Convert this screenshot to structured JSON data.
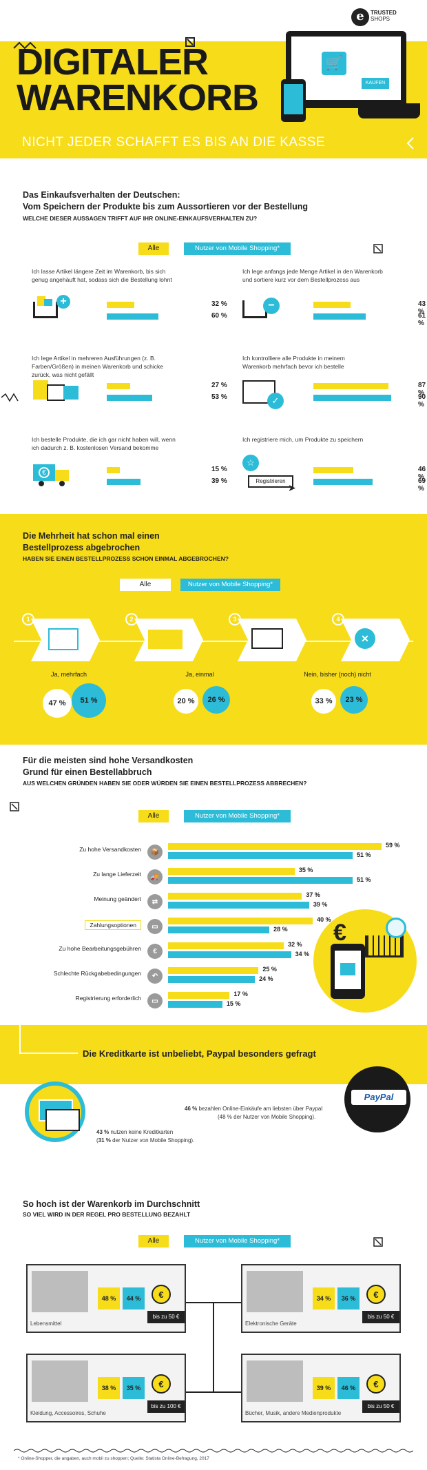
{
  "header": {
    "title_line1": "DIGITALER",
    "title_line2": "WARENKORB",
    "subtitle": "NICHT JEDER SCHAFFT ES BIS AN DIE KASSE",
    "logo_line1": "TRUSTED",
    "logo_line2": "SHOPS",
    "cart_label": "KAUFEN"
  },
  "legend": {
    "all": "Alle",
    "mobile": "Nutzer von Mobile Shopping*"
  },
  "section1": {
    "title_line1": "Das Einkaufsverhalten der Deutschen:",
    "title_line2": "Vom Speichern der Produkte bis zum Aussortieren vor der Bestellung",
    "question": "WELCHE DIESER AUSSAGEN TRIFFT AUF IHR ONLINE-EINKAUFSVERHALTEN ZU?",
    "register_label": "Registrieren",
    "items": [
      {
        "text": "Ich lasse Artikel längere Zeit im Warenkorb, bis sich genug angehäuft hat, sodass sich die Bestellung lohnt",
        "all": 32,
        "mobile": 60,
        "all_label": "32 %",
        "mobile_label": "60 %"
      },
      {
        "text": "Ich lege anfangs jede Menge Artikel in den Warenkorb und sortiere kurz vor dem Bestellprozess aus",
        "all": 43,
        "mobile": 61,
        "all_label": "43 %",
        "mobile_label": "61 %"
      },
      {
        "text": "Ich lege Artikel in mehreren Ausführungen (z. B. Farben/Größen) in meinen Warenkorb und schicke zurück, was nicht gefällt",
        "all": 27,
        "mobile": 53,
        "all_label": "27 %",
        "mobile_label": "53 %"
      },
      {
        "text": "Ich kontrolliere alle Produkte in meinem Warenkorb mehrfach bevor ich bestelle",
        "all": 87,
        "mobile": 90,
        "all_label": "87 %",
        "mobile_label": "90 %"
      },
      {
        "text": "Ich bestelle Produkte, die ich gar nicht haben will, wenn ich dadurch z. B. kostenlosen Versand bekomme",
        "all": 15,
        "mobile": 39,
        "all_label": "15 %",
        "mobile_label": "39 %"
      },
      {
        "text": "Ich registriere mich, um Produkte zu speichern",
        "all": 46,
        "mobile": 69,
        "all_label": "46 %",
        "mobile_label": "69 %"
      }
    ]
  },
  "section2": {
    "title_line1": "Die Mehrheit hat schon mal einen",
    "title_line2": "Bestellprozess abgebrochen",
    "question": "HABEN SIE EINEN BESTELLPROZESS SCHON EINMAL ABGEBROCHEN?",
    "steps": [
      "1",
      "2",
      "3",
      "4"
    ],
    "answers": [
      {
        "label": "Ja, mehrfach",
        "all_label": "47 %",
        "mobile_label": "51 %"
      },
      {
        "label": "Ja, einmal",
        "all_label": "20 %",
        "mobile_label": "26 %"
      },
      {
        "label": "Nein, bisher (noch) nicht",
        "all_label": "33 %",
        "mobile_label": "23 %"
      }
    ]
  },
  "section3": {
    "title_line1": "Für die meisten sind hohe Versandkosten",
    "title_line2": "Grund für einen Bestellabbruch",
    "question": "AUS WELCHEN GRÜNDEN HABEN SIE ODER WÜRDEN SIE EINEN BESTELLPROZESS ABBRECHEN?",
    "euro": "€"
  },
  "chart_data": {
    "type": "bar",
    "categories": [
      "Zu hohe Versandkosten",
      "Zu lange Lieferzeit",
      "Meinung geändert",
      "Zahlungsoptionen",
      "Zu hohe Bearbeitungsgebühren",
      "Schlechte Rückgabebedingungen",
      "Registrierung erforderlich"
    ],
    "series": [
      {
        "name": "Alle",
        "values": [
          59,
          35,
          37,
          40,
          32,
          25,
          17
        ],
        "labels": [
          "59 %",
          "35 %",
          "37 %",
          "40 %",
          "32 %",
          "25 %",
          "17 %"
        ]
      },
      {
        "name": "Nutzer von Mobile Shopping*",
        "values": [
          51,
          51,
          39,
          28,
          34,
          24,
          15
        ],
        "labels": [
          "51 %",
          "51 %",
          "39 %",
          "28 %",
          "34 %",
          "24 %",
          "15 %"
        ]
      }
    ],
    "colors": {
      "all": "#f7dc1a",
      "mobile": "#2cbcd8"
    }
  },
  "section4": {
    "title": "Die Kreditkarte ist unbeliebt, Paypal besonders gefragt",
    "paypal_pct": "46 %",
    "paypal_text": "bezahlen Online-Einkäufe am liebsten über Paypal",
    "paypal_sub": "(48 % der Nutzer von Mobile Shopping).",
    "card_pct": "43 %",
    "card_text": "nutzen keine Kreditkarten",
    "card_sub_pct": "31 %",
    "card_sub": "der Nutzer von Mobile Shopping).",
    "paypal_logo": "PayPal"
  },
  "section5": {
    "title": "So hoch ist der Warenkorb im Durchschnitt",
    "question": "SO VIEL WIRD IN DER REGEL PRO BESTELLUNG BEZAHLT",
    "categories": [
      {
        "label": "Lebensmittel",
        "all_label": "48 %",
        "mobile_label": "44 %",
        "amount": "bis zu 50 €"
      },
      {
        "label": "Elektronische Geräte",
        "all_label": "34 %",
        "mobile_label": "36 %",
        "amount": "bis zu 50 €"
      },
      {
        "label": "Kleidung, Accessoires, Schuhe",
        "all_label": "38 %",
        "mobile_label": "35 %",
        "amount": "bis zu 100 €"
      },
      {
        "label": "Bücher, Musik, andere Medienprodukte",
        "all_label": "39 %",
        "mobile_label": "46 %",
        "amount": "bis zu 50 €"
      }
    ]
  },
  "footer": {
    "note": "* Online-Shopper, die angaben, auch mobil zu shoppen; Quelle: Statista Online-Befragung, 2017"
  }
}
